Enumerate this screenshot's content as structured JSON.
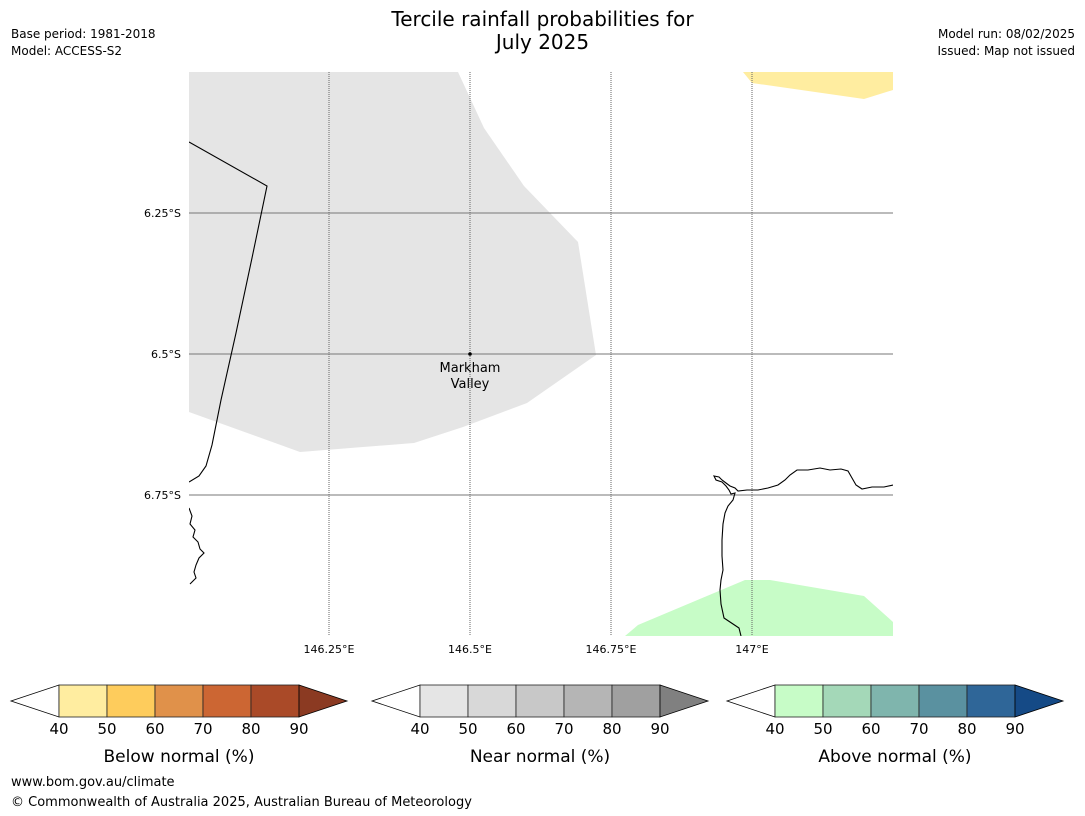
{
  "header": {
    "title_line1": "Tercile rainfall probabilities for",
    "title_line2": "July 2025",
    "base_period": "Base period: 1981-2018",
    "model": "Model: ACCESS-S2",
    "model_run": "Model run: 08/02/2025",
    "issued": "Issued: Map not issued"
  },
  "map": {
    "lat_labels": [
      "6.25°S",
      "6.5°S",
      "6.75°S"
    ],
    "lon_labels": [
      "146.25°E",
      "146.5°E",
      "146.75°E",
      "147°E"
    ],
    "place": {
      "name_line1": "Markham",
      "name_line2": "Valley"
    },
    "regions": {
      "near_normal_color": "#e5e5e5",
      "below_normal_color": "#ffeda0",
      "above_normal_color": "#c7fcc7"
    }
  },
  "legends": [
    {
      "label": "Below normal (%)",
      "ticks": [
        "40",
        "50",
        "60",
        "70",
        "80",
        "90"
      ],
      "colors": [
        "#ffffff",
        "#ffeda0",
        "#fecc5c",
        "#e0914a",
        "#cc6633",
        "#aa4a28",
        "#8b3a22"
      ]
    },
    {
      "label": "Near normal (%)",
      "ticks": [
        "40",
        "50",
        "60",
        "70",
        "80",
        "90"
      ],
      "colors": [
        "#ffffff",
        "#e5e5e5",
        "#d8d8d8",
        "#c8c8c8",
        "#b5b5b5",
        "#a0a0a0",
        "#808080"
      ]
    },
    {
      "label": "Above normal (%)",
      "ticks": [
        "40",
        "50",
        "60",
        "70",
        "80",
        "90"
      ],
      "colors": [
        "#ffffff",
        "#c7fcc7",
        "#a4d8b8",
        "#7fb5ad",
        "#5a91a0",
        "#2f6698",
        "#154a86"
      ]
    }
  ],
  "footer": {
    "url": "www.bom.gov.au/climate",
    "copyright": "© Commonwealth of Australia 2025, Australian Bureau of Meteorology"
  }
}
